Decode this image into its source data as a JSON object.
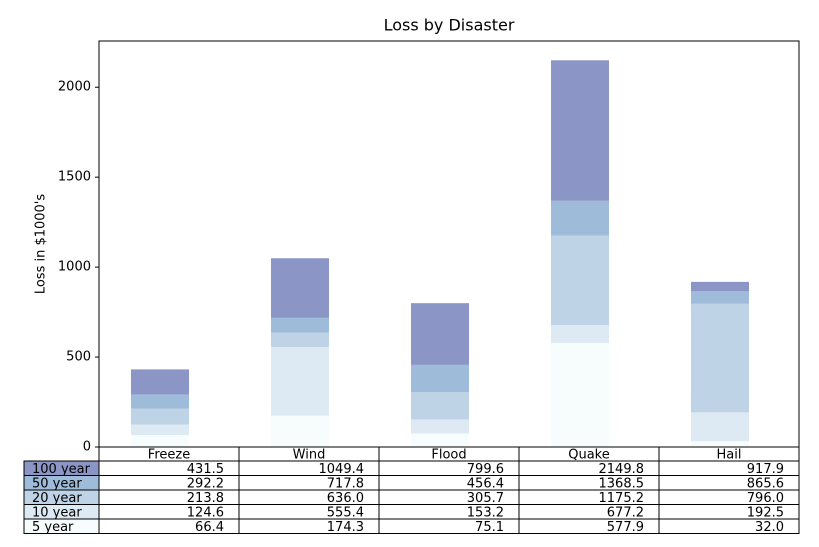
{
  "chart_data": {
    "type": "bar",
    "stacked": true,
    "title": "Loss by Disaster",
    "y_label": "Loss in $1000's",
    "categories": [
      "Freeze",
      "Wind",
      "Flood",
      "Quake",
      "Hail"
    ],
    "series": [
      {
        "name": "5 year",
        "color": "#f7fcfd",
        "values": [
          66.4,
          174.3,
          75.1,
          577.9,
          32.0
        ]
      },
      {
        "name": "10 year",
        "color": "#ddeaf3",
        "values": [
          58.2,
          381.1,
          78.1,
          99.3,
          160.5
        ]
      },
      {
        "name": "20 year",
        "color": "#bfd3e6",
        "values": [
          89.2,
          80.6,
          152.5,
          498.0,
          603.5
        ]
      },
      {
        "name": "50 year",
        "color": "#9ebcda",
        "values": [
          78.4,
          81.8,
          150.7,
          193.3,
          69.6
        ]
      },
      {
        "name": "100 year",
        "color": "#8c96c6",
        "values": [
          139.3,
          331.6,
          343.2,
          781.3,
          52.3
        ]
      }
    ],
    "ylim": [
      0,
      2257
    ],
    "yticks": [
      0,
      500,
      1000,
      1500,
      2000
    ],
    "cell_text": [
      [
        "431.5",
        "1049.4",
        "799.6",
        "2149.8",
        "917.9"
      ],
      [
        "292.2",
        "717.8",
        "456.4",
        "1368.5",
        "865.6"
      ],
      [
        "213.8",
        "636.0",
        "305.7",
        "1175.2",
        "796.0"
      ],
      [
        "124.6",
        "555.4",
        "153.2",
        "677.2",
        "192.5"
      ],
      [
        "66.4",
        "174.3",
        "75.1",
        "577.9",
        "32.0"
      ]
    ]
  }
}
